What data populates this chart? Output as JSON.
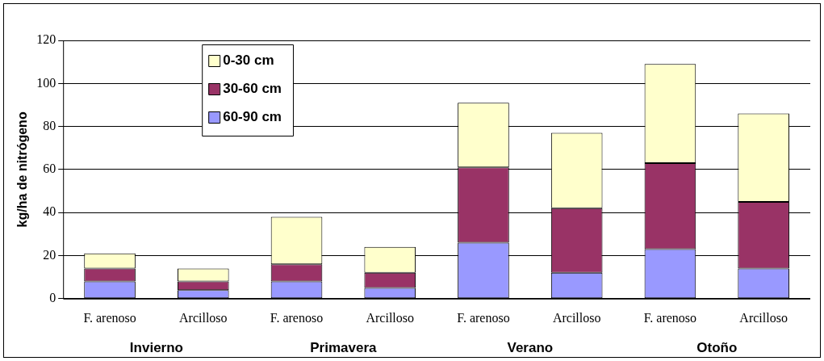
{
  "chart_data": {
    "type": "bar",
    "stacked": true,
    "ylabel": "kg/ha de nitrógeno",
    "categories": [
      "F. arenoso",
      "Arcilloso",
      "F. arenoso",
      "Arcilloso",
      "F. arenoso",
      "Arcilloso",
      "F. arenoso",
      "Arcilloso"
    ],
    "series": [
      {
        "name": "60-90 cm",
        "color": "#9999ff",
        "values": [
          8,
          4,
          8,
          5,
          26,
          12,
          23,
          14
        ]
      },
      {
        "name": "30-60 cm",
        "color": "#993366",
        "values": [
          6,
          4,
          8,
          7,
          35,
          30,
          40,
          31
        ]
      },
      {
        "name": "0-30 cm",
        "color": "#ffffcc",
        "values": [
          7,
          6,
          22,
          12,
          30,
          35,
          46,
          41
        ]
      }
    ],
    "ylim": [
      0,
      120
    ],
    "yticks": [
      0,
      20,
      40,
      60,
      80,
      100,
      120
    ],
    "grid": "y",
    "legend": "top left",
    "annotations": [
      "Invierno",
      "Primavera",
      "Verano",
      "Otoño"
    ]
  }
}
